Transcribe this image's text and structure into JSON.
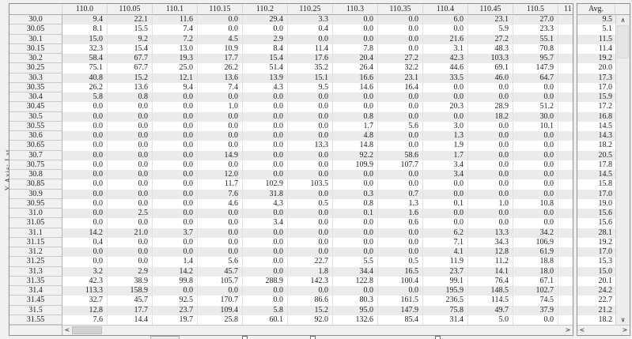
{
  "axis_label": "Y Axis: Lat",
  "grid": {
    "corner": "",
    "col_headers": [
      "110.0",
      "110.05",
      "110.1",
      "110.15",
      "110.2",
      "110.25",
      "110.3",
      "110.35",
      "110.4",
      "110.45",
      "110.5"
    ],
    "clipped_col_header_visible_text": "11",
    "row_headers": [
      "30.0",
      "30.05",
      "30.1",
      "30.15",
      "30.2",
      "30.25",
      "30.3",
      "30.35",
      "30.4",
      "30.45",
      "30.5",
      "30.55",
      "30.6",
      "30.65",
      "30.7",
      "30.75",
      "30.8",
      "30.85",
      "30.9",
      "30.95",
      "31.0",
      "31.05",
      "31.1",
      "31.15",
      "31.2",
      "31.25",
      "31.3",
      "31.35",
      "31.4",
      "31.45",
      "31.5",
      "31.55"
    ],
    "rows": [
      [
        9.4,
        22.1,
        11.6,
        0.0,
        29.4,
        3.3,
        0.0,
        0.0,
        6.0,
        23.1,
        27.0
      ],
      [
        8.1,
        15.5,
        7.4,
        0.0,
        0.0,
        0.4,
        0.0,
        0.0,
        0.0,
        5.9,
        23.3
      ],
      [
        15.0,
        9.2,
        7.2,
        4.5,
        2.9,
        0.0,
        0.0,
        0.0,
        21.6,
        27.2,
        55.1
      ],
      [
        32.3,
        15.4,
        13.0,
        10.9,
        8.4,
        11.4,
        7.8,
        0.0,
        3.1,
        48.3,
        70.8
      ],
      [
        58.4,
        67.7,
        19.3,
        17.7,
        15.4,
        17.6,
        20.4,
        27.2,
        42.3,
        103.3,
        95.7
      ],
      [
        75.1,
        67.7,
        25.0,
        26.2,
        51.4,
        35.2,
        26.4,
        32.2,
        44.6,
        69.1,
        147.9
      ],
      [
        40.8,
        15.2,
        12.1,
        13.6,
        13.9,
        15.1,
        16.6,
        23.1,
        33.5,
        46.0,
        64.7
      ],
      [
        26.2,
        13.6,
        9.4,
        7.4,
        4.3,
        9.5,
        14.6,
        16.4,
        0.0,
        0.0,
        0.0
      ],
      [
        5.8,
        0.8,
        0.0,
        0.0,
        0.0,
        0.0,
        0.0,
        0.0,
        0.0,
        0.0,
        0.0
      ],
      [
        0.0,
        0.0,
        0.0,
        1.0,
        0.0,
        0.0,
        0.0,
        0.0,
        20.3,
        28.9,
        51.2
      ],
      [
        0.0,
        0.0,
        0.0,
        0.0,
        0.0,
        0.0,
        0.8,
        0.0,
        0.0,
        18.2,
        30.0
      ],
      [
        0.0,
        0.0,
        0.0,
        0.0,
        0.0,
        0.0,
        1.7,
        5.6,
        3.0,
        0.0,
        10.1
      ],
      [
        0.0,
        0.0,
        0.0,
        0.0,
        0.0,
        0.0,
        4.8,
        0.0,
        1.3,
        0.0,
        0.0
      ],
      [
        0.0,
        0.0,
        0.0,
        0.0,
        0.0,
        13.3,
        14.8,
        0.0,
        1.9,
        0.0,
        0.0
      ],
      [
        0.0,
        0.0,
        0.0,
        14.9,
        0.0,
        0.0,
        92.2,
        58.6,
        1.7,
        0.0,
        0.0
      ],
      [
        0.0,
        0.0,
        0.0,
        0.0,
        0.0,
        0.0,
        109.9,
        107.7,
        3.4,
        0.0,
        0.0
      ],
      [
        0.0,
        0.0,
        0.0,
        12.0,
        0.0,
        0.0,
        0.0,
        0.0,
        3.4,
        0.0,
        0.0
      ],
      [
        0.0,
        0.0,
        0.0,
        11.7,
        102.9,
        103.5,
        0.0,
        0.0,
        0.0,
        0.0,
        0.0
      ],
      [
        0.0,
        0.0,
        0.0,
        7.6,
        31.8,
        0.0,
        0.3,
        0.7,
        0.0,
        0.0,
        0.0
      ],
      [
        0.0,
        0.0,
        0.0,
        4.6,
        4.3,
        0.5,
        0.8,
        1.3,
        0.1,
        1.0,
        10.8
      ],
      [
        0.0,
        2.5,
        0.0,
        0.0,
        0.0,
        0.0,
        0.1,
        1.6,
        0.0,
        0.0,
        0.0
      ],
      [
        0.0,
        0.0,
        0.0,
        0.0,
        3.4,
        0.0,
        0.0,
        0.6,
        0.0,
        0.0,
        0.0
      ],
      [
        14.2,
        21.0,
        3.7,
        0.0,
        0.0,
        0.0,
        0.0,
        0.0,
        6.2,
        13.3,
        34.2
      ],
      [
        0.4,
        0.0,
        0.0,
        0.0,
        0.0,
        0.0,
        0.0,
        0.0,
        7.1,
        34.3,
        106.9
      ],
      [
        0.0,
        0.0,
        0.0,
        0.0,
        0.0,
        0.0,
        0.0,
        0.0,
        4.1,
        12.8,
        61.9
      ],
      [
        0.0,
        0.0,
        1.4,
        5.6,
        0.0,
        22.7,
        5.5,
        0.5,
        11.9,
        11.2,
        18.8
      ],
      [
        3.2,
        2.9,
        14.2,
        45.7,
        0.0,
        1.8,
        34.4,
        16.5,
        23.7,
        14.1,
        18.0
      ],
      [
        42.3,
        38.9,
        99.8,
        105.7,
        288.9,
        142.3,
        122.8,
        100.4,
        99.1,
        76.4,
        67.1
      ],
      [
        113.3,
        158.9,
        0.0,
        0.0,
        0.0,
        0.0,
        0.0,
        0.0,
        195.9,
        148.5,
        102.7
      ],
      [
        32.7,
        45.7,
        92.5,
        170.7,
        0.0,
        86.6,
        80.3,
        161.5,
        236.5,
        114.5,
        74.5
      ],
      [
        12.8,
        17.7,
        23.7,
        109.4,
        5.8,
        15.2,
        95.0,
        147.9,
        75.8,
        49.7,
        37.9
      ],
      [
        7.6,
        14.4,
        19.7,
        25.8,
        60.1,
        92.0,
        132.6,
        85.4,
        31.4,
        5.0,
        0.0
      ]
    ]
  },
  "avg_panel": {
    "header": "Avg.",
    "values": [
      9.5,
      5.1,
      11.5,
      11.4,
      19.2,
      20.0,
      17.3,
      17.0,
      15.9,
      17.2,
      16.8,
      14.5,
      14.3,
      18.2,
      20.5,
      17.8,
      14.5,
      15.8,
      17.0,
      19.0,
      15.6,
      15.6,
      28.1,
      19.2,
      17.0,
      15.3,
      15.0,
      20.1,
      24.2,
      22.7,
      21.2,
      18.2
    ]
  },
  "scrollbars": {
    "h_left_arrow": "<",
    "h_right_arrow": ">",
    "v_up_arrow": "∧",
    "v_down_arrow": "∨",
    "avg_h_left_arrow": "<",
    "avg_h_right_arrow": ">"
  },
  "colors": {
    "page_bg": "#f0f0f0",
    "stripe_row": "#ebebeb",
    "white_row": "#ffffff",
    "header_bg": "#f0f0f0",
    "panel_border": "#8f8f8f",
    "text": "#1c1c1c",
    "scroll_thumb": "#d2d2d2"
  }
}
